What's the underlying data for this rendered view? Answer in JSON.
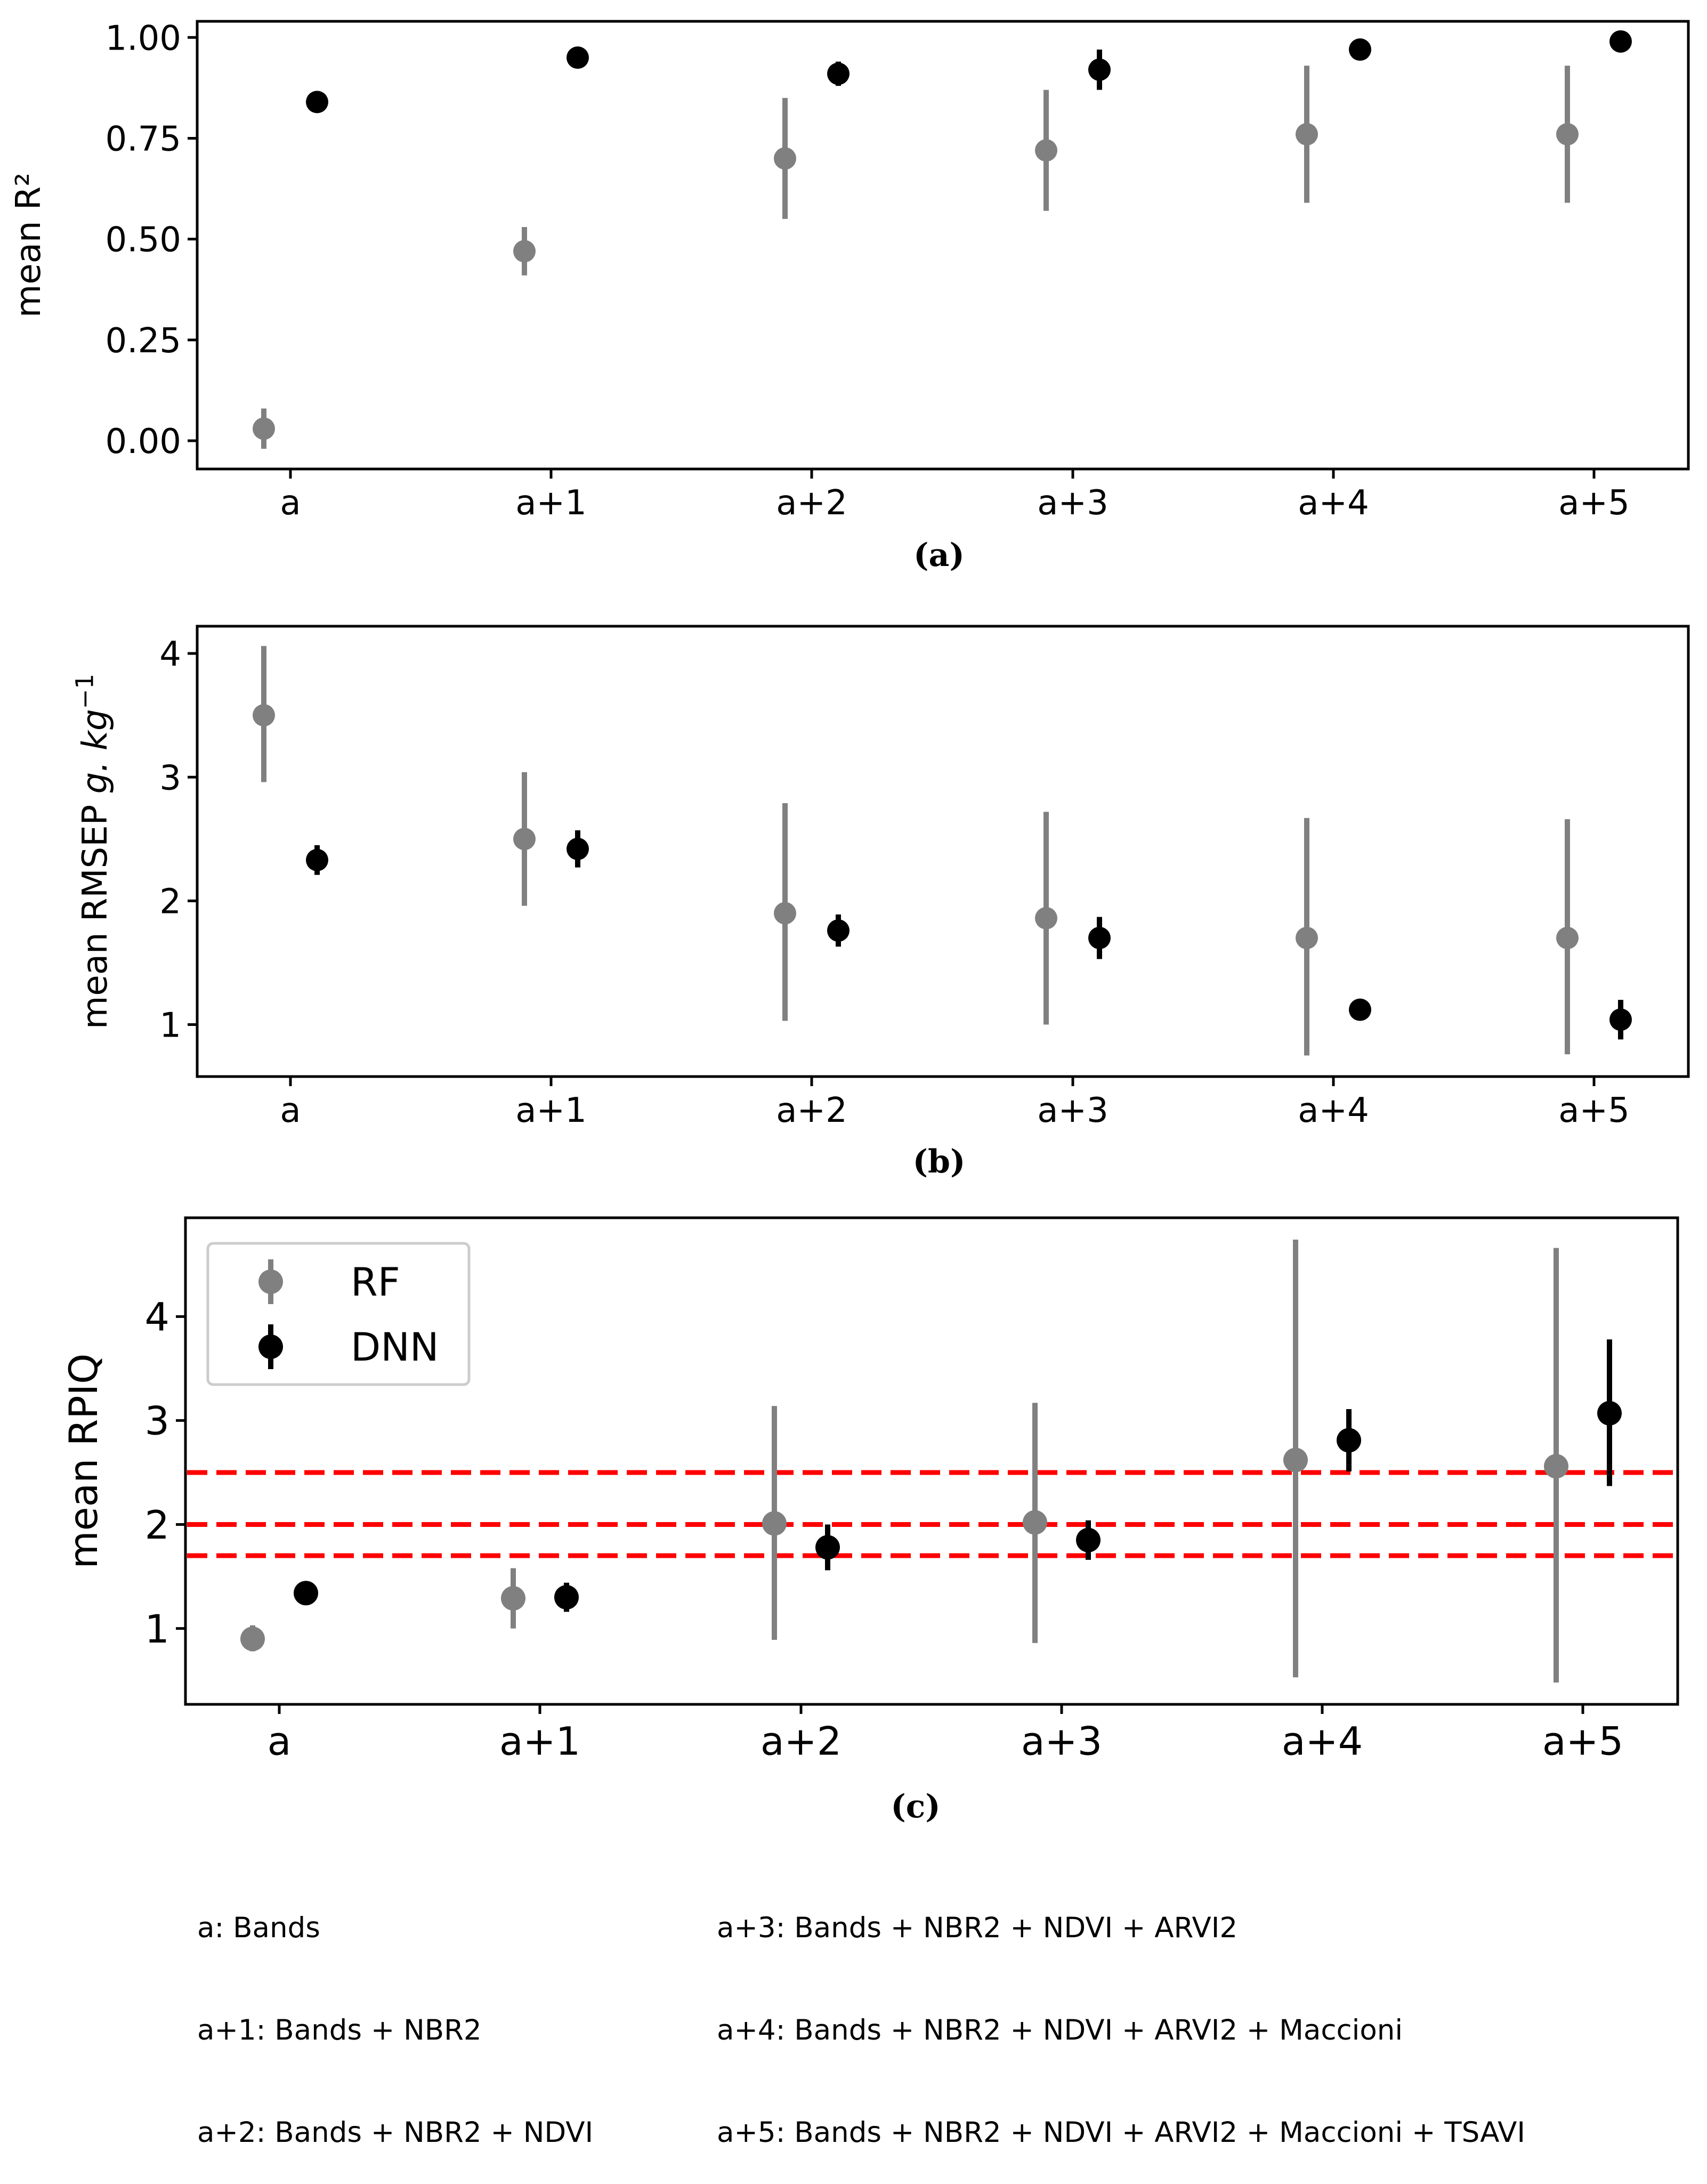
{
  "chart_data": [
    {
      "type": "scatter",
      "panel": "a",
      "caption": "(a)",
      "ylabel": "mean R²",
      "xlabel": "",
      "categories": [
        "a",
        "a+1",
        "a+2",
        "a+3",
        "a+4",
        "a+5"
      ],
      "ylim": [
        -0.07,
        1.04
      ],
      "yticks": [
        0.0,
        0.25,
        0.5,
        0.75,
        1.0
      ],
      "ytick_labels": [
        "0.00",
        "0.25",
        "0.50",
        "0.75",
        "1.00"
      ],
      "series": [
        {
          "name": "RF",
          "color": "#808080",
          "values": [
            0.03,
            0.47,
            0.7,
            0.72,
            0.76,
            0.76
          ],
          "err_low": [
            -0.02,
            0.41,
            0.55,
            0.57,
            0.59,
            0.59
          ],
          "err_high": [
            0.08,
            0.53,
            0.85,
            0.87,
            0.93,
            0.93
          ]
        },
        {
          "name": "DNN",
          "color": "#000000",
          "values": [
            0.84,
            0.95,
            0.91,
            0.92,
            0.97,
            0.99
          ],
          "err_low": [
            0.82,
            0.94,
            0.88,
            0.87,
            0.96,
            0.98
          ],
          "err_high": [
            0.86,
            0.96,
            0.94,
            0.97,
            0.98,
            1.0
          ]
        }
      ],
      "hlines": [],
      "legend": null
    },
    {
      "type": "scatter",
      "panel": "b",
      "caption": "(b)",
      "ylabel": "mean RMSEP",
      "ylabel_unit": "g. kg",
      "ylabel_exp": "−1",
      "xlabel": "",
      "categories": [
        "a",
        "a+1",
        "a+2",
        "a+3",
        "a+4",
        "a+5"
      ],
      "ylim": [
        0.58,
        4.22
      ],
      "yticks": [
        1,
        2,
        3,
        4
      ],
      "ytick_labels": [
        "1",
        "2",
        "3",
        "4"
      ],
      "series": [
        {
          "name": "RF",
          "color": "#808080",
          "values": [
            3.5,
            2.5,
            1.9,
            1.86,
            1.7,
            1.7
          ],
          "err_low": [
            2.96,
            1.96,
            1.03,
            1.0,
            0.75,
            0.76
          ],
          "err_high": [
            4.06,
            3.04,
            2.79,
            2.72,
            2.67,
            2.66
          ]
        },
        {
          "name": "DNN",
          "color": "#000000",
          "values": [
            2.33,
            2.42,
            1.76,
            1.7,
            1.12,
            1.04
          ],
          "err_low": [
            2.21,
            2.27,
            1.63,
            1.53,
            1.05,
            0.88
          ],
          "err_high": [
            2.45,
            2.57,
            1.89,
            1.87,
            1.19,
            1.2
          ]
        }
      ],
      "hlines": [],
      "legend": null
    },
    {
      "type": "scatter",
      "panel": "c",
      "caption": "(c)",
      "ylabel": "mean RPIQ",
      "xlabel": "",
      "categories": [
        "a",
        "a+1",
        "a+2",
        "a+3",
        "a+4",
        "a+5"
      ],
      "ylim": [
        0.27,
        4.95
      ],
      "yticks": [
        1,
        2,
        3,
        4
      ],
      "ytick_labels": [
        "1",
        "2",
        "3",
        "4"
      ],
      "series": [
        {
          "name": "RF",
          "color": "#808080",
          "values": [
            0.9,
            1.29,
            2.01,
            2.02,
            2.62,
            2.56
          ],
          "err_low": [
            0.78,
            1.0,
            0.89,
            0.86,
            0.53,
            0.48
          ],
          "err_high": [
            1.03,
            1.58,
            3.14,
            3.17,
            4.74,
            4.66
          ]
        },
        {
          "name": "DNN",
          "color": "#000000",
          "values": [
            1.34,
            1.3,
            1.78,
            1.85,
            2.81,
            3.07
          ],
          "err_low": [
            1.3,
            1.16,
            1.56,
            1.66,
            2.51,
            2.37
          ],
          "err_high": [
            1.38,
            1.44,
            2.0,
            2.04,
            3.11,
            3.78
          ]
        }
      ],
      "hlines": [
        {
          "y": 2.5,
          "color": "#ff0000",
          "style": "dashed"
        },
        {
          "y": 2.0,
          "color": "#ff0000",
          "style": "dashed"
        },
        {
          "y": 1.7,
          "color": "#ff0000",
          "style": "dashed"
        }
      ],
      "legend": {
        "position": "top-left",
        "entries": [
          "RF",
          "DNN"
        ]
      }
    }
  ],
  "footnotes": {
    "left": [
      "a: Bands",
      "a+1: Bands + NBR2",
      "a+2: Bands + NBR2 + NDVI"
    ],
    "right": [
      "a+3: Bands + NBR2 + NDVI + ARVI2",
      "a+4: Bands + NBR2 + NDVI + ARVI2 + Maccioni",
      "a+5: Bands + NBR2 + NDVI + ARVI2 + Maccioni + TSAVI"
    ]
  }
}
